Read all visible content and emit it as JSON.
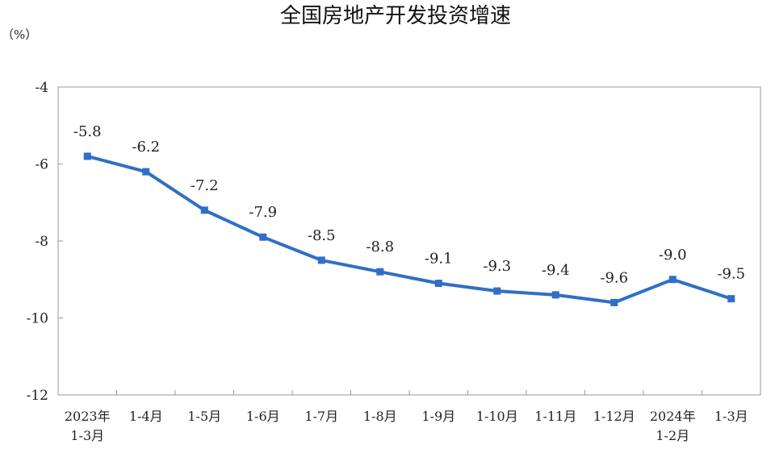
{
  "chart_data": {
    "type": "line",
    "title": "全国房地产开发投资增速",
    "unit_label": "（%）",
    "categories": [
      [
        "2023年",
        "1-3月"
      ],
      [
        "1-4月"
      ],
      [
        "1-5月"
      ],
      [
        "1-6月"
      ],
      [
        "1-7月"
      ],
      [
        "1-8月"
      ],
      [
        "1-9月"
      ],
      [
        "1-10月"
      ],
      [
        "1-11月"
      ],
      [
        "1-12月"
      ],
      [
        "2024年",
        "1-2月"
      ],
      [
        "1-3月"
      ]
    ],
    "values": [
      -5.8,
      -6.2,
      -7.2,
      -7.9,
      -8.5,
      -8.8,
      -9.1,
      -9.3,
      -9.4,
      -9.6,
      -9.0,
      -9.5
    ],
    "data_labels": [
      "-5.8",
      "-6.2",
      "-7.2",
      "-7.9",
      "-8.5",
      "-8.8",
      "-9.1",
      "-9.3",
      "-9.4",
      "-9.6",
      "-9.0",
      "-9.5"
    ],
    "ylim": [
      -12,
      -4
    ],
    "yticks": [
      -4,
      -6,
      -8,
      -10,
      -12
    ],
    "ytick_labels": [
      "-4",
      "-6",
      "-8",
      "-10",
      "-12"
    ],
    "grid": false,
    "legend": "none",
    "colors": {
      "line": "#2f6fc6",
      "axis": "#999999"
    }
  }
}
